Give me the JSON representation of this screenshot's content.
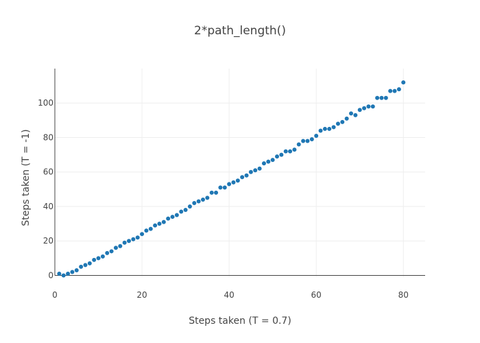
{
  "chart_data": {
    "type": "scatter",
    "title": "2*path_length()",
    "xlabel": "Steps taken (T = 0.7)",
    "ylabel": "Steps taken (T = -1)",
    "xlim": [
      0,
      85
    ],
    "ylim": [
      -1,
      120
    ],
    "x_ticks": [
      0,
      20,
      40,
      60,
      80
    ],
    "y_ticks": [
      0,
      20,
      40,
      60,
      80,
      100
    ],
    "grid": true,
    "marker_color": "#1f77b4",
    "series": [
      {
        "x": [
          1,
          2,
          3,
          4,
          5,
          6,
          7,
          8,
          9,
          10,
          11,
          12,
          13,
          14,
          15,
          16,
          17,
          18,
          19,
          20,
          21,
          22,
          23,
          24,
          25,
          26,
          27,
          28,
          29,
          30,
          31,
          32,
          33,
          34,
          35,
          36,
          37,
          38,
          39,
          40,
          41,
          42,
          43,
          44,
          45,
          46,
          47,
          48,
          49,
          50,
          51,
          52,
          53,
          54,
          55,
          56,
          57,
          58,
          59,
          60,
          61,
          62,
          63,
          64,
          65,
          66,
          67,
          68,
          69,
          70,
          71,
          72,
          73,
          74,
          75,
          76,
          77,
          78,
          79,
          80
        ],
        "y": [
          1,
          0,
          1,
          2,
          3,
          5,
          6,
          7,
          9,
          10,
          11,
          13,
          14,
          16,
          17,
          19,
          20,
          21,
          22,
          24,
          26,
          27,
          29,
          30,
          31,
          33,
          34,
          35,
          37,
          38,
          40,
          42,
          43,
          44,
          45,
          48,
          48,
          51,
          51,
          53,
          54,
          55,
          57,
          58,
          60,
          61,
          62,
          65,
          66,
          67,
          69,
          70,
          72,
          72,
          73,
          76,
          78,
          78,
          79,
          81,
          84,
          85,
          85,
          86,
          88,
          89,
          91,
          94,
          93,
          96,
          97,
          98,
          98,
          103,
          103,
          103,
          107,
          107,
          108,
          112
        ]
      }
    ]
  }
}
